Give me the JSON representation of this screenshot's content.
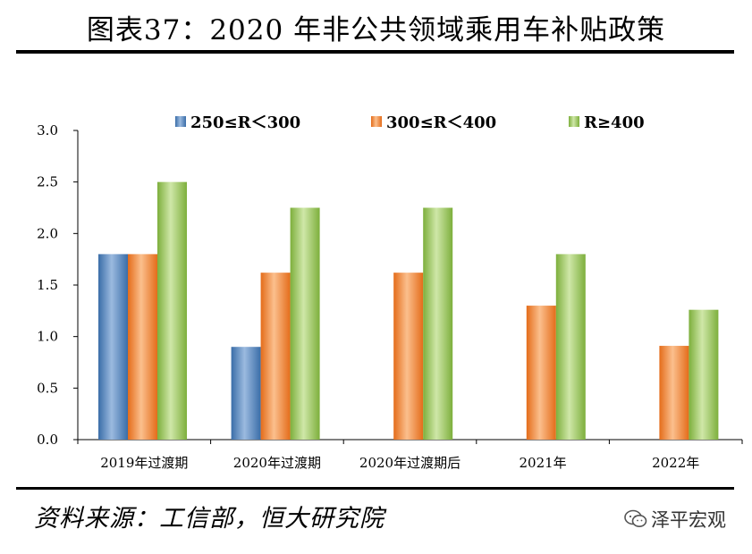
{
  "header": {
    "title": "图表37：2020 年非公共领域乘用车补贴政策"
  },
  "footer": {
    "source": "资料来源：工信部，恒大研究院",
    "brand": "泽平宏观",
    "brand_icon": "wechat-icon"
  },
  "chart_data": {
    "type": "bar",
    "title": "",
    "xlabel": "",
    "ylabel": "",
    "ylim": [
      0,
      3.0
    ],
    "yticks": [
      "0.0",
      "0.5",
      "1.0",
      "1.5",
      "2.0",
      "2.5",
      "3.0"
    ],
    "grid": false,
    "legend_position": "top",
    "categories": [
      "2019年过渡期",
      "2020年过渡期",
      "2020年过渡期后",
      "2021年",
      "2022年"
    ],
    "series": [
      {
        "name": "250≤R＜300",
        "color": "#4f81bd",
        "values": [
          1.8,
          0.9,
          null,
          null,
          null
        ]
      },
      {
        "name": "300≤R＜400",
        "color": "#f79646",
        "values": [
          1.8,
          1.62,
          1.62,
          1.3,
          0.91
        ]
      },
      {
        "name": "R≥400",
        "color": "#9bbb59",
        "values": [
          2.5,
          2.25,
          2.25,
          1.8,
          1.26
        ]
      }
    ]
  }
}
